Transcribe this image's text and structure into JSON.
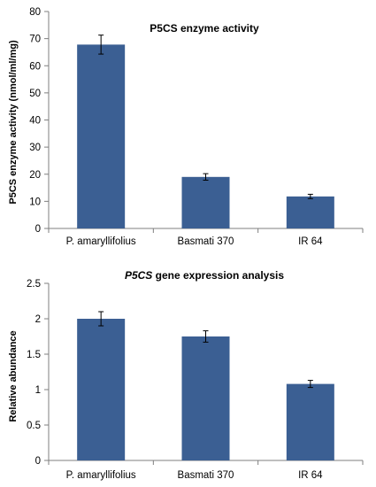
{
  "chart_data": [
    {
      "type": "bar",
      "title": "P5CS enzyme activity",
      "ylabel": "P5CS enzyme activity (nmol/ml/mg)",
      "xlabel": "",
      "categories": [
        "P. amaryllifolius",
        "Basmati 370",
        "IR 64"
      ],
      "values": [
        67.8,
        19.0,
        11.8
      ],
      "errors": [
        3.5,
        1.2,
        0.8
      ],
      "ylim": [
        0,
        80
      ],
      "yticks": [
        0,
        10,
        20,
        30,
        40,
        50,
        60,
        70,
        80
      ],
      "ytick_labels": [
        "0",
        "10",
        "20",
        "30",
        "40",
        "50",
        "60",
        "70",
        "80"
      ],
      "grid": false,
      "bar_color": "#3b5f93"
    },
    {
      "type": "bar",
      "title": "P5CS gene expression analysis",
      "title_italic_part": "P5CS",
      "title_rest": " gene expression analysis",
      "ylabel": "Relative abundance",
      "xlabel": "",
      "categories": [
        "P. amaryllifolius",
        "Basmati 370",
        "IR 64"
      ],
      "values": [
        2.0,
        1.75,
        1.08
      ],
      "errors": [
        0.1,
        0.08,
        0.05
      ],
      "ylim": [
        0,
        2.5
      ],
      "yticks": [
        0,
        0.5,
        1,
        1.5,
        2,
        2.5
      ],
      "ytick_labels": [
        "0",
        "0.5",
        "1",
        "1.5",
        "2",
        "2.5"
      ],
      "grid": false,
      "bar_color": "#3b5f93"
    }
  ]
}
